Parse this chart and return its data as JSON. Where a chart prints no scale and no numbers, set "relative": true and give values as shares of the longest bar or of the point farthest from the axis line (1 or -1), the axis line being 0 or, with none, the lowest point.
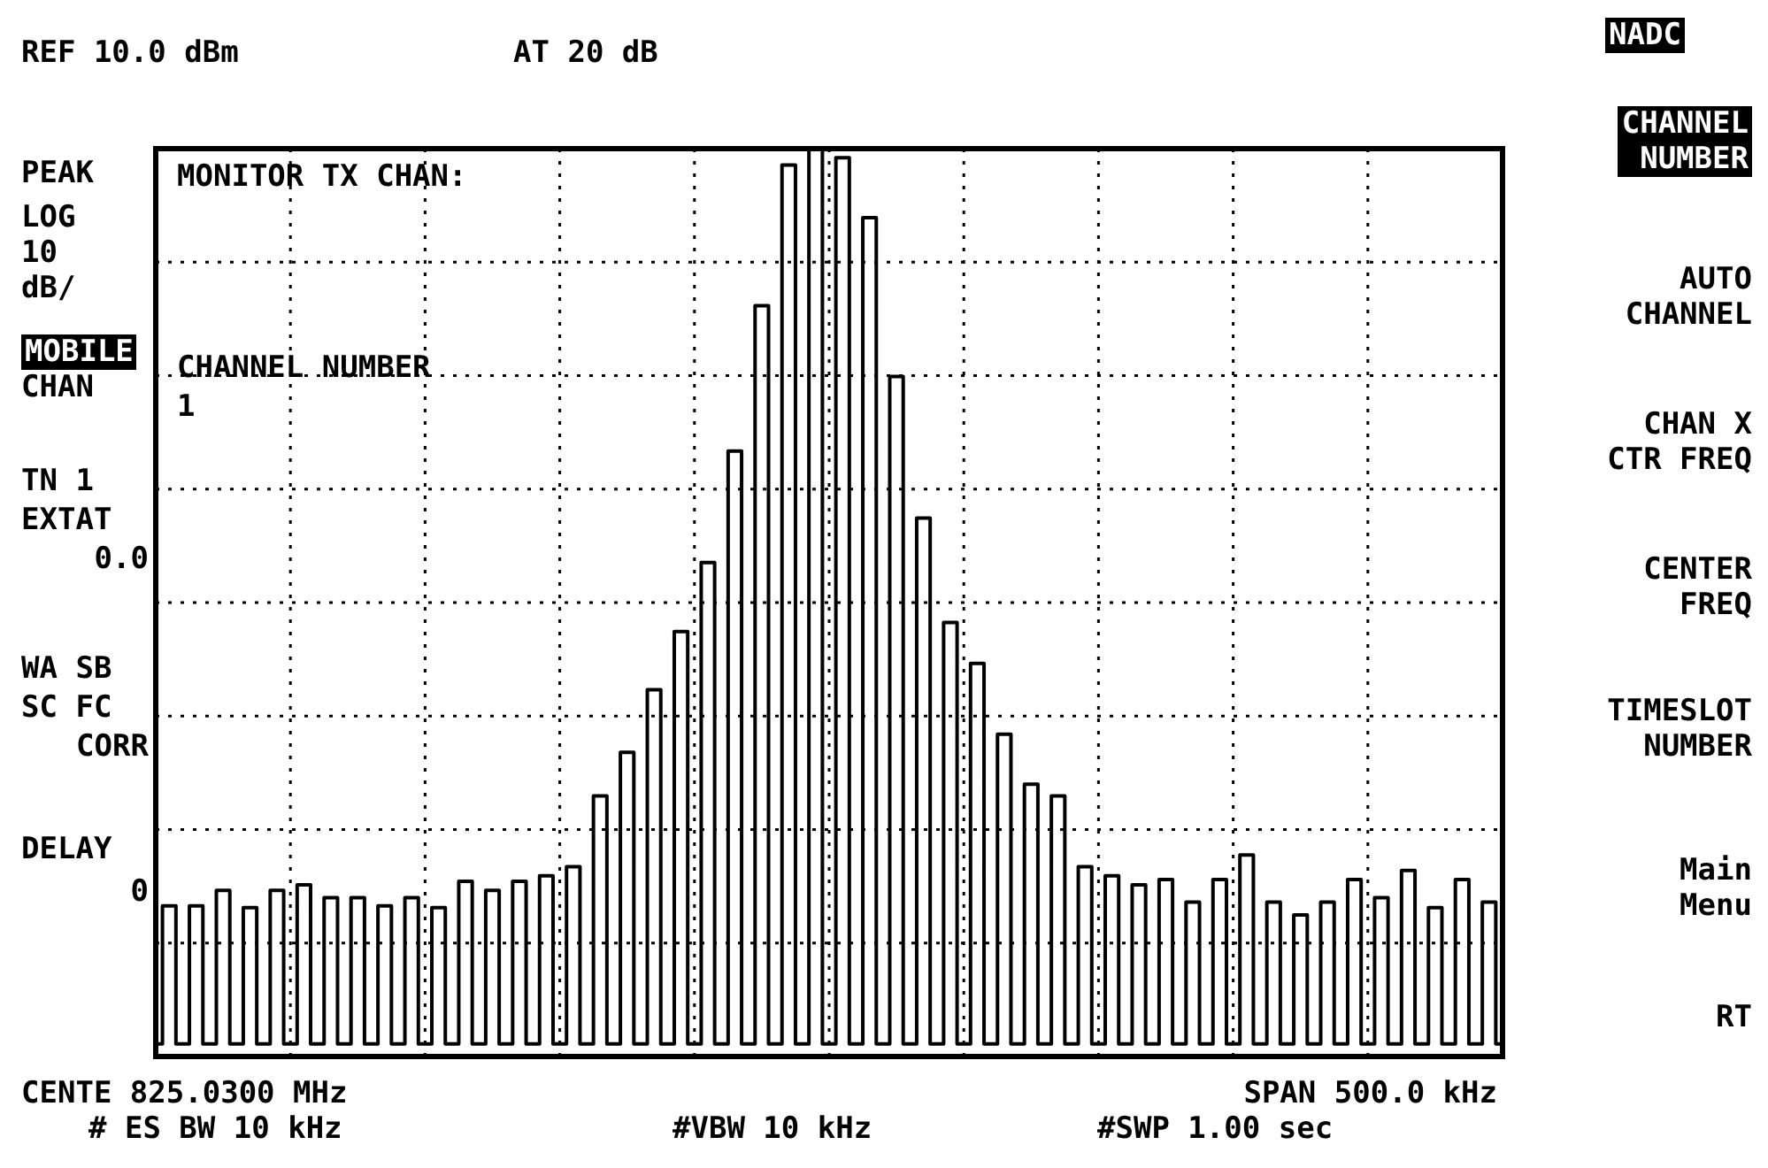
{
  "chart_data": {
    "type": "step",
    "relative": true,
    "grid": true,
    "marker": "none",
    "line_style": "solid",
    "categories": [
      null,
      null,
      null,
      null,
      null,
      null,
      null,
      null,
      null,
      null,
      null,
      null,
      null,
      null,
      null,
      null,
      null,
      null,
      null,
      null,
      null,
      null,
      null,
      null,
      null,
      null,
      null,
      null,
      null,
      null,
      null,
      null,
      null,
      null,
      null,
      null,
      null,
      null,
      null,
      null,
      null,
      null,
      null,
      null,
      null,
      null,
      null,
      null,
      null,
      null,
      null,
      null,
      null,
      null,
      null,
      null,
      null,
      null,
      null,
      null,
      null,
      null,
      null,
      null,
      null,
      null,
      null,
      null,
      null,
      null,
      null,
      null,
      null,
      null,
      null,
      null,
      null,
      null,
      null,
      null,
      null,
      null,
      null,
      null,
      null,
      null,
      null,
      null,
      null,
      null,
      null,
      null,
      null,
      null,
      null,
      null,
      null,
      null,
      null,
      null,
      null
    ],
    "series": [
      {
        "color": "#000000",
        "values": [
          0.014,
          0.166,
          0.014,
          0.166,
          0.014,
          0.183,
          0.014,
          0.164,
          0.014,
          0.183,
          0.014,
          0.189,
          0.014,
          0.175,
          0.014,
          0.175,
          0.014,
          0.166,
          0.014,
          0.175,
          0.014,
          0.164,
          0.014,
          0.193,
          0.014,
          0.183,
          0.014,
          0.193,
          0.014,
          0.199,
          0.014,
          0.209,
          0.014,
          0.287,
          0.014,
          0.335,
          0.014,
          0.404,
          0.014,
          0.468,
          0.014,
          0.544,
          0.014,
          0.667,
          0.014,
          0.827,
          0.014,
          0.982,
          0.014,
          1,
          0.014,
          0.99,
          0.014,
          0.924,
          0.014,
          0.749,
          0.014,
          0.593,
          0.014,
          0.478,
          0.014,
          0.433,
          0.014,
          0.355,
          0.014,
          0.3,
          0.014,
          0.287,
          0.014,
          0.209,
          0.014,
          0.199,
          0.014,
          0.189,
          0.014,
          0.195,
          0.014,
          0.17,
          0.014,
          0.195,
          0.014,
          0.222,
          0.014,
          0.17,
          0.014,
          0.156,
          0.014,
          0.17,
          0.014,
          0.195,
          0.014,
          0.175,
          0.014,
          0.205,
          0.014,
          0.164,
          0.014,
          0.195,
          0.014,
          0.17,
          0.014
        ]
      }
    ],
    "annotations": [
      "REF 10.0 dBm",
      "AT 20 dB",
      "PEAK",
      "LOG",
      "10",
      "dB/",
      "MOBILE",
      "CHAN",
      "TN 1",
      "EXTAT",
      "0.0",
      "WA SB",
      "SC FC",
      "CORR",
      "DELAY",
      "0",
      "MONITOR TX CHAN:",
      "CHANNEL NUMBER",
      "1",
      "CENTE 825.0300 MHz",
      "SPAN 500.0 kHz",
      "# ES BW 10 kHz",
      "#VBW 10 kHz",
      "#SWP 1.00 sec",
      "NADC",
      "CHANNEL\nNUMBER",
      "AUTO\nCHANNEL",
      "CHAN X\nCTR FREQ",
      "CENTER\nFREQ",
      "TIMESLOT\nNUMBER",
      "Main\nMenu",
      "RT"
    ]
  }
}
